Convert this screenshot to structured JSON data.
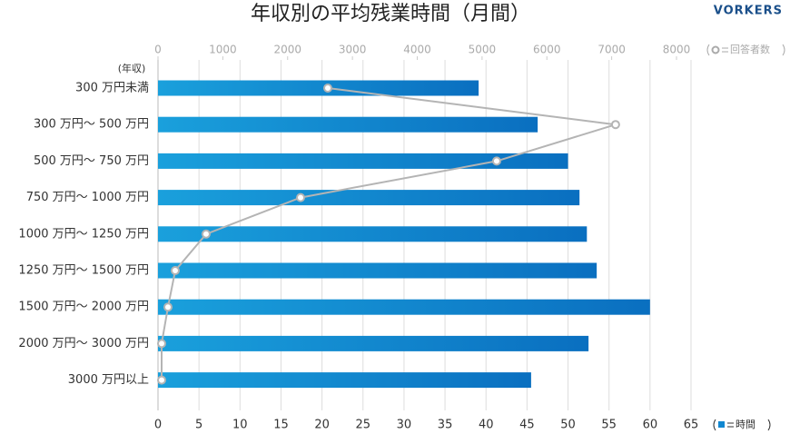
{
  "chart_data": {
    "type": "bar",
    "orientation": "horizontal",
    "title": "年収別の平均残業時間（月間）",
    "logo": "VORKERS",
    "y_label": "(年収)",
    "categories": [
      "300 万円未満",
      "300 万円～ 500 万円",
      "500 万円～ 750 万円",
      "750 万円～ 1000 万円",
      "1000 万円～ 1250 万円",
      "1250 万円～ 1500 万円",
      "1500 万円～ 2000 万円",
      "2000 万円～ 3000 万円",
      "3000 万円以上"
    ],
    "series": [
      {
        "name": "時間",
        "color": "#1187d0",
        "type": "bar",
        "values": [
          39.1,
          46.3,
          50,
          51.4,
          52.3,
          53.5,
          60,
          52.5,
          45.5
        ]
      },
      {
        "name": "回答者数",
        "color": "#b4b4b4",
        "type": "line",
        "axis": "x2",
        "values": [
          2620,
          7060,
          5225,
          2200,
          742,
          266,
          154,
          56,
          56
        ]
      }
    ],
    "xlim": [
      0,
      65
    ],
    "xticks": [
      0,
      5,
      10,
      15,
      20,
      25,
      30,
      35,
      40,
      45,
      50,
      55,
      60,
      65
    ],
    "x2lim": [
      0,
      8000
    ],
    "x2ticks": [
      0,
      1000,
      2000,
      3000,
      4000,
      5000,
      6000,
      7000,
      8000
    ],
    "grid": true
  }
}
